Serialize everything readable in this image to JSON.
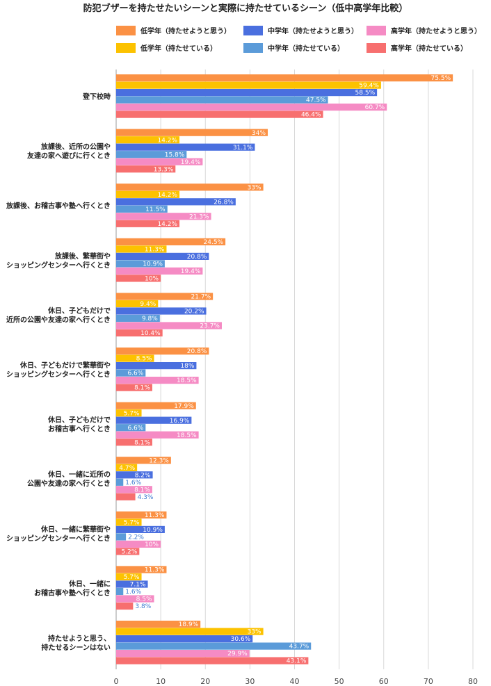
{
  "chart_data": {
    "type": "bar",
    "orientation": "horizontal",
    "title": "防犯ブザーを持たせたいシーンと実際に持たせているシーン（低中高学年比較）",
    "categories": [
      [
        "登下校時"
      ],
      [
        "放課後、近所の公園や",
        "友達の家へ遊びに行くとき"
      ],
      [
        "放課後、お稽古事や塾へ行くとき"
      ],
      [
        "放課後、繁華街や",
        "ショッピングセンターへ行くとき"
      ],
      [
        "休日、子どもだけで",
        "近所の公園や友達の家へ行くとき"
      ],
      [
        "休日、子どもだけで繁華街や",
        "ショッピングセンターへ行くとき"
      ],
      [
        "休日、子どもだけで",
        "お稽古事へ行くとき"
      ],
      [
        "休日、一緒に近所の",
        "公園や友達の家へ行くとき"
      ],
      [
        "休日、一緒に繁華街や",
        "ショッピングセンターへ行くとき"
      ],
      [
        "休日、一緒に",
        "お稽古事や塾へ行くとき"
      ],
      [
        "持たせようと思う、",
        "持たせるシーンはない"
      ]
    ],
    "series": [
      {
        "name": "低学年（持たせようと思う）",
        "color": "#fb9144",
        "values": [
          75.5,
          34,
          33,
          24.5,
          21.7,
          20.8,
          17.9,
          12.3,
          11.3,
          11.3,
          18.9
        ],
        "labels": [
          "75.5%",
          "34%",
          "33%",
          "24.5%",
          "21.7%",
          "20.8%",
          "17.9%",
          "12.3%",
          "11.3%",
          "11.3%",
          "18.9%"
        ]
      },
      {
        "name": "低学年（持たせている）",
        "color": "#fcc200",
        "values": [
          59.4,
          14.2,
          14.2,
          11.3,
          9.4,
          8.5,
          5.7,
          4.7,
          5.7,
          5.7,
          33
        ],
        "labels": [
          "59.4%",
          "14.2%",
          "14.2%",
          "11.3%",
          "9.4%",
          "8.5%",
          "5.7%",
          "4.7%",
          "5.7%",
          "5.7%",
          "33%"
        ]
      },
      {
        "name": "中学年（持たせようと思う）",
        "color": "#4a6fdf",
        "values": [
          58.5,
          31.1,
          26.8,
          20.8,
          20.2,
          18,
          16.9,
          8.2,
          10.9,
          7.1,
          30.6
        ],
        "labels": [
          "58.5%",
          "31.1%",
          "26.8%",
          "20.8%",
          "20.2%",
          "18%",
          "16.9%",
          "8.2%",
          "10.9%",
          "7.1%",
          "30.6%"
        ]
      },
      {
        "name": "中学年（持たせている）",
        "color": "#5b9bd9",
        "values": [
          47.5,
          15.8,
          11.5,
          10.9,
          9.8,
          6.6,
          6.6,
          1.6,
          2.2,
          1.6,
          43.7
        ],
        "labels": [
          "47.5%",
          "15.8%",
          "11.5%",
          "10.9%",
          "9.8%",
          "6.6%",
          "6.6%",
          "1.6%",
          "2.2%",
          "1.6%",
          "43.7%"
        ]
      },
      {
        "name": "高学年（持たせようと思う）",
        "color": "#f58bc4",
        "values": [
          60.7,
          19.4,
          21.3,
          19.4,
          23.7,
          18.5,
          18.5,
          8.1,
          10,
          8.5,
          29.9
        ],
        "labels": [
          "60.7%",
          "19.4%",
          "21.3%",
          "19.4%",
          "23.7%",
          "18.5%",
          "18.5%",
          "8.1%",
          "10%",
          "8.5%",
          "29.9%"
        ]
      },
      {
        "name": "高学年（持たせている）",
        "color": "#f76f6f",
        "values": [
          46.4,
          13.3,
          14.2,
          10,
          10.4,
          8.1,
          8.1,
          4.3,
          5.2,
          3.8,
          43.1
        ],
        "labels": [
          "46.4%",
          "13.3%",
          "14.2%",
          "10%",
          "10.4%",
          "8.1%",
          "8.1%",
          "4.3%",
          "5.2%",
          "3.8%",
          "43.1%"
        ]
      }
    ],
    "xlim": [
      0,
      80
    ],
    "xticks": [
      0,
      10,
      20,
      30,
      40,
      50,
      60,
      70,
      80
    ],
    "xlabel": "",
    "ylabel": "",
    "grid": true,
    "legend_position": "top"
  }
}
